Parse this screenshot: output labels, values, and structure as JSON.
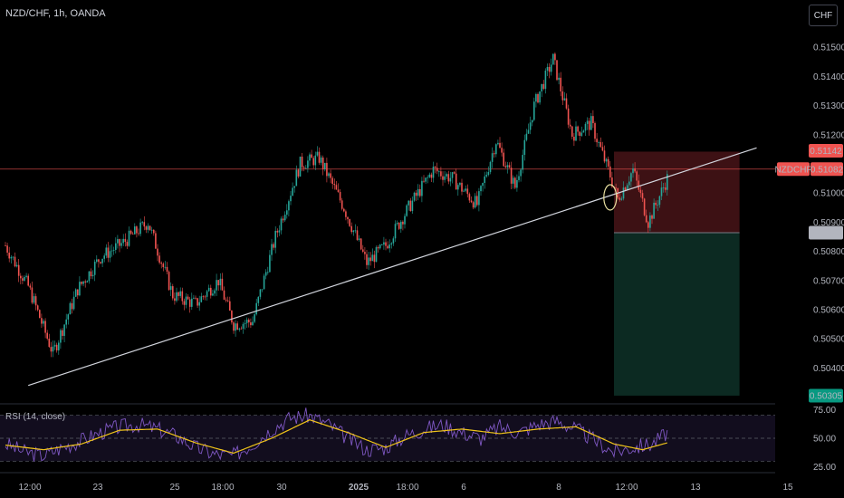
{
  "header": {
    "title": "NZD/CHF, 1h, OANDA",
    "currency_button": "CHF"
  },
  "rsi": {
    "title": "RSI (14, close)"
  },
  "badges": {
    "symbol": "NZDCHF",
    "last_price": "0.51082",
    "stop": "0.51142",
    "entry": "0.50864",
    "target": "0.50305"
  },
  "colors": {
    "up": "#26a69a",
    "down": "#ef5350",
    "trendline": "#d1d4dc",
    "rsi_line": "#7e57c2",
    "rsi_ma": "#f0c419",
    "stop_zone": "#3d1114",
    "target_zone": "#0c2a22"
  },
  "chart_data": [
    {
      "type": "candlestick",
      "title": "NZD/CHF, 1h, OANDA",
      "x_ticks": [
        "12:00",
        "23",
        "25",
        "18:00",
        "30",
        "2025",
        "18:00",
        "6",
        "8",
        "12:00",
        "13",
        "15"
      ],
      "y_ticks": [
        "0.51500",
        "0.51400",
        "0.51300",
        "0.51200",
        "0.51000",
        "0.50900",
        "0.50800",
        "0.50700",
        "0.50600",
        "0.50500",
        "0.50400"
      ],
      "ylim": [
        0.5028,
        0.516
      ],
      "key_points": [
        {
          "t": 0,
          "price": 0.5082
        },
        {
          "t": 12,
          "price": 0.5068
        },
        {
          "t": 25,
          "price": 0.5045
        },
        {
          "t": 38,
          "price": 0.5067
        },
        {
          "t": 50,
          "price": 0.5078
        },
        {
          "t": 62,
          "price": 0.5083
        },
        {
          "t": 75,
          "price": 0.509
        },
        {
          "t": 88,
          "price": 0.5065
        },
        {
          "t": 100,
          "price": 0.5062
        },
        {
          "t": 112,
          "price": 0.507
        },
        {
          "t": 120,
          "price": 0.5055
        },
        {
          "t": 130,
          "price": 0.5056
        },
        {
          "t": 142,
          "price": 0.5085
        },
        {
          "t": 155,
          "price": 0.511
        },
        {
          "t": 165,
          "price": 0.5112
        },
        {
          "t": 178,
          "price": 0.5095
        },
        {
          "t": 190,
          "price": 0.5076
        },
        {
          "t": 200,
          "price": 0.5082
        },
        {
          "t": 212,
          "price": 0.5095
        },
        {
          "t": 225,
          "price": 0.5108
        },
        {
          "t": 235,
          "price": 0.5105
        },
        {
          "t": 248,
          "price": 0.5096
        },
        {
          "t": 258,
          "price": 0.5118
        },
        {
          "t": 268,
          "price": 0.5102
        },
        {
          "t": 278,
          "price": 0.513
        },
        {
          "t": 288,
          "price": 0.5146
        },
        {
          "t": 298,
          "price": 0.512
        },
        {
          "t": 308,
          "price": 0.5124
        },
        {
          "t": 318,
          "price": 0.5106
        },
        {
          "t": 322,
          "price": 0.5098
        },
        {
          "t": 330,
          "price": 0.5108
        },
        {
          "t": 338,
          "price": 0.509
        },
        {
          "t": 348,
          "price": 0.5105
        }
      ],
      "candles_count": 349,
      "trendline": {
        "start": {
          "t": 12,
          "price": 0.5034
        },
        "end": {
          "t": 395,
          "price": 0.51155
        }
      },
      "horizontal_line": {
        "price": 0.51082,
        "color": "#ef5350"
      },
      "highlight_circle": {
        "t": 318,
        "price": 0.50985
      },
      "position": {
        "start_t": 320,
        "end_t": 386,
        "entry": 0.50864,
        "stop": 0.51142,
        "target": 0.50305
      },
      "annotations": [
        "NZDCHF 0.51082",
        "0.51142",
        "0.50864",
        "0.50305"
      ]
    },
    {
      "type": "line",
      "title": "RSI (14, close)",
      "y_ticks": [
        "75.00",
        "50.00",
        "25.00"
      ],
      "ylim": [
        20,
        80
      ],
      "levels": [
        70,
        50,
        30
      ],
      "series": [
        {
          "name": "RSI",
          "key_points": [
            [
              0,
              45
            ],
            [
              10,
              38
            ],
            [
              20,
              35
            ],
            [
              30,
              42
            ],
            [
              40,
              48
            ],
            [
              50,
              55
            ],
            [
              60,
              60
            ],
            [
              70,
              62
            ],
            [
              80,
              58
            ],
            [
              90,
              52
            ],
            [
              100,
              42
            ],
            [
              110,
              36
            ],
            [
              120,
              35
            ],
            [
              130,
              45
            ],
            [
              140,
              58
            ],
            [
              150,
              68
            ],
            [
              160,
              70
            ],
            [
              170,
              62
            ],
            [
              180,
              50
            ],
            [
              190,
              40
            ],
            [
              200,
              42
            ],
            [
              210,
              52
            ],
            [
              220,
              58
            ],
            [
              230,
              62
            ],
            [
              240,
              55
            ],
            [
              250,
              50
            ],
            [
              260,
              60
            ],
            [
              270,
              55
            ],
            [
              280,
              62
            ],
            [
              290,
              65
            ],
            [
              300,
              58
            ],
            [
              310,
              48
            ],
            [
              320,
              38
            ],
            [
              330,
              42
            ],
            [
              340,
              45
            ],
            [
              348,
              55
            ]
          ]
        },
        {
          "name": "RSI-based MA",
          "key_points": [
            [
              0,
              44
            ],
            [
              20,
              40
            ],
            [
              40,
              45
            ],
            [
              60,
              57
            ],
            [
              80,
              58
            ],
            [
              100,
              46
            ],
            [
              120,
              37
            ],
            [
              140,
              50
            ],
            [
              160,
              66
            ],
            [
              180,
              55
            ],
            [
              200,
              42
            ],
            [
              220,
              55
            ],
            [
              240,
              58
            ],
            [
              260,
              54
            ],
            [
              280,
              58
            ],
            [
              300,
              60
            ],
            [
              320,
              45
            ],
            [
              335,
              40
            ],
            [
              348,
              46
            ]
          ]
        }
      ]
    }
  ]
}
